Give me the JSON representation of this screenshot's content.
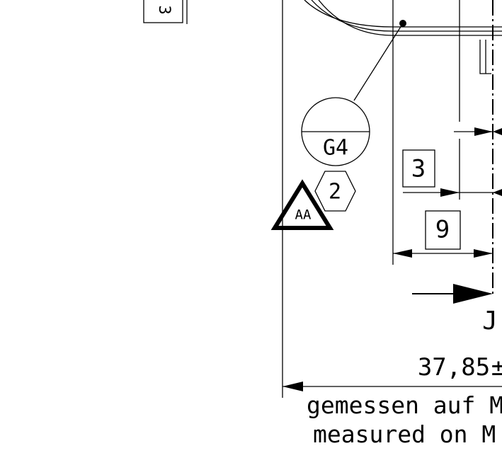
{
  "drawing": {
    "edge_box_label": "3",
    "weld_symbol_text": "G4",
    "hexagon_note": "2",
    "triangle_mark": "AA",
    "box_dimension_3": "3",
    "box_dimension_9": "9",
    "section_letter": "J",
    "dimension_value": "37,85",
    "tolerance_prefix": "±",
    "note_german": "gemessen auf M",
    "note_english": "measured on M"
  }
}
